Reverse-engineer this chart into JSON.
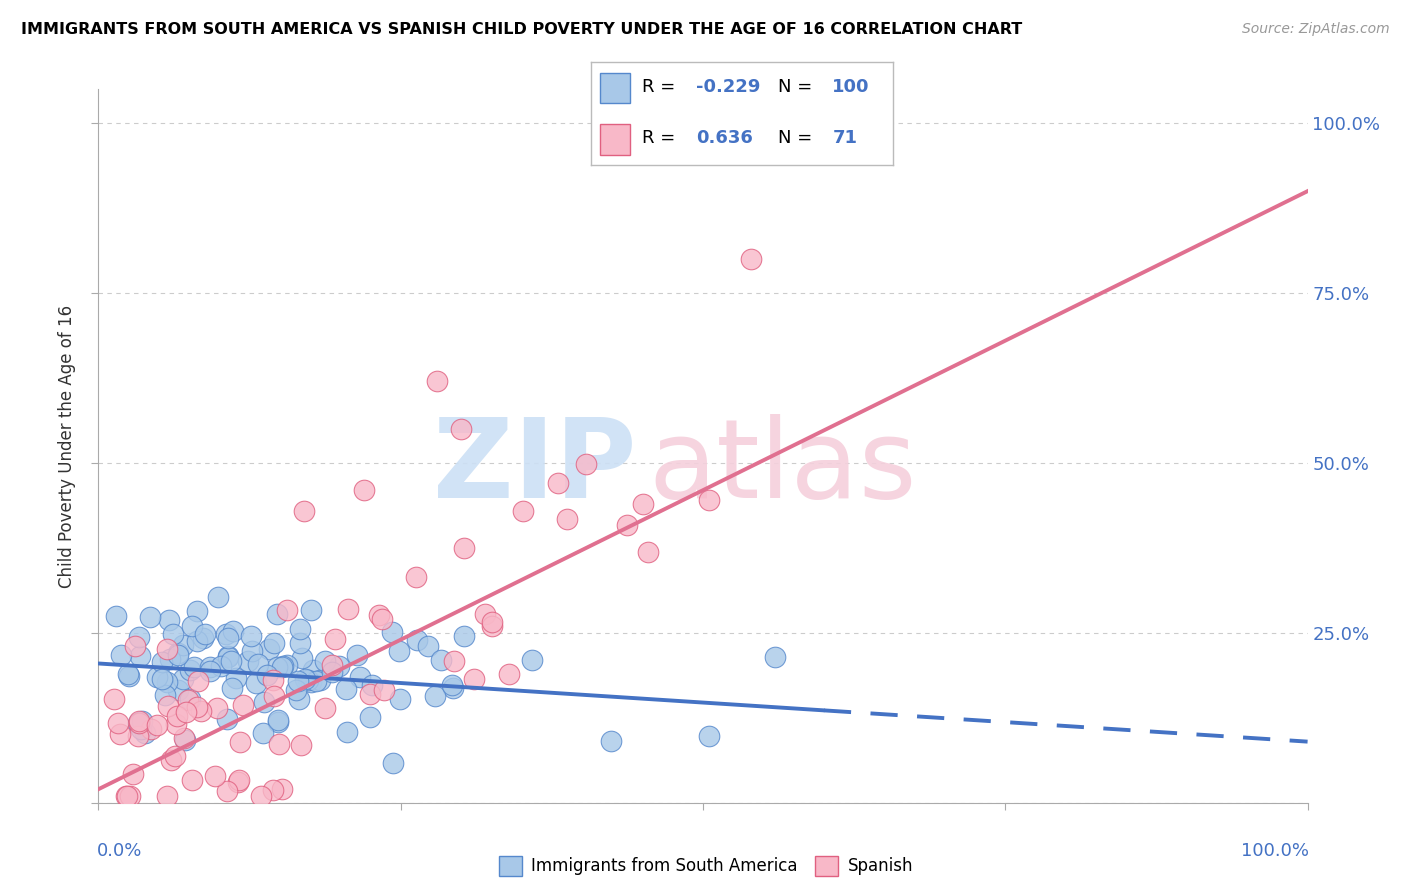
{
  "title": "IMMIGRANTS FROM SOUTH AMERICA VS SPANISH CHILD POVERTY UNDER THE AGE OF 16 CORRELATION CHART",
  "source": "Source: ZipAtlas.com",
  "ylabel": "Child Poverty Under the Age of 16",
  "blue_color": "#a8c8e8",
  "blue_edge": "#5588cc",
  "pink_color": "#f8b8c8",
  "pink_edge": "#e06080",
  "blue_line_color": "#4472c4",
  "pink_line_color": "#e07090",
  "accent_color": "#4472c4",
  "grid_color": "#cccccc",
  "blue_n": 100,
  "pink_n": 71,
  "blue_r": -0.229,
  "pink_r": 0.636,
  "blue_intercept": 0.205,
  "blue_slope": -0.115,
  "pink_intercept": 0.02,
  "pink_slope": 0.88,
  "watermark_zip_color": "#cce0f5",
  "watermark_atlas_color": "#f5d0dc",
  "seed_blue": 42,
  "seed_pink": 99
}
